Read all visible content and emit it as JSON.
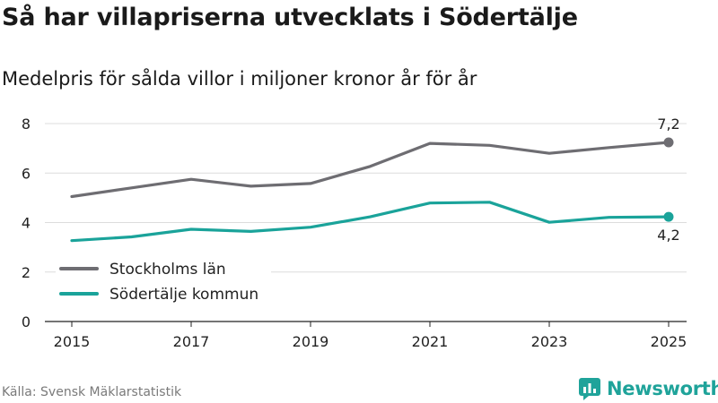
{
  "title": "Så har villapriserna utvecklats i Södertälje",
  "subtitle": "Medelpris för sålda villor i miljoner kronor år för år",
  "source": "Källa: Svensk Mäklarstatistik",
  "brand": "Newsworthy",
  "colors": {
    "stockholm": "#6e6d72",
    "sodertalje": "#1aa39a",
    "grid": "#dcdcdc",
    "axis": "#222222",
    "brand": "#1fa39a"
  },
  "chart_data": {
    "type": "line",
    "x": [
      2015,
      2016,
      2017,
      2018,
      2019,
      2020,
      2021,
      2022,
      2023,
      2024,
      2025
    ],
    "series": [
      {
        "name": "Stockholms län",
        "color": "#6e6d72",
        "values": [
          5.05,
          5.4,
          5.75,
          5.47,
          5.58,
          6.27,
          7.2,
          7.12,
          6.8,
          7.03,
          7.24
        ],
        "end_label": "7,2",
        "end_label_position": "above"
      },
      {
        "name": "Södertälje kommun",
        "color": "#1aa39a",
        "values": [
          3.27,
          3.42,
          3.73,
          3.64,
          3.81,
          4.23,
          4.79,
          4.82,
          4.01,
          4.21,
          4.23
        ],
        "end_label": "4,2",
        "end_label_position": "below"
      }
    ],
    "ylim": [
      0,
      8
    ],
    "yticks": [
      0,
      2,
      4,
      6,
      8
    ],
    "ytick_labels": [
      "0",
      "2",
      "4",
      "6",
      "8"
    ],
    "xticks": [
      2015,
      2017,
      2019,
      2021,
      2023,
      2025
    ],
    "xtick_labels": [
      "2015",
      "2017",
      "2019",
      "2021",
      "2023",
      "2025"
    ],
    "xlabel": "",
    "ylabel": "",
    "grid": true,
    "legend": "lower-left"
  }
}
